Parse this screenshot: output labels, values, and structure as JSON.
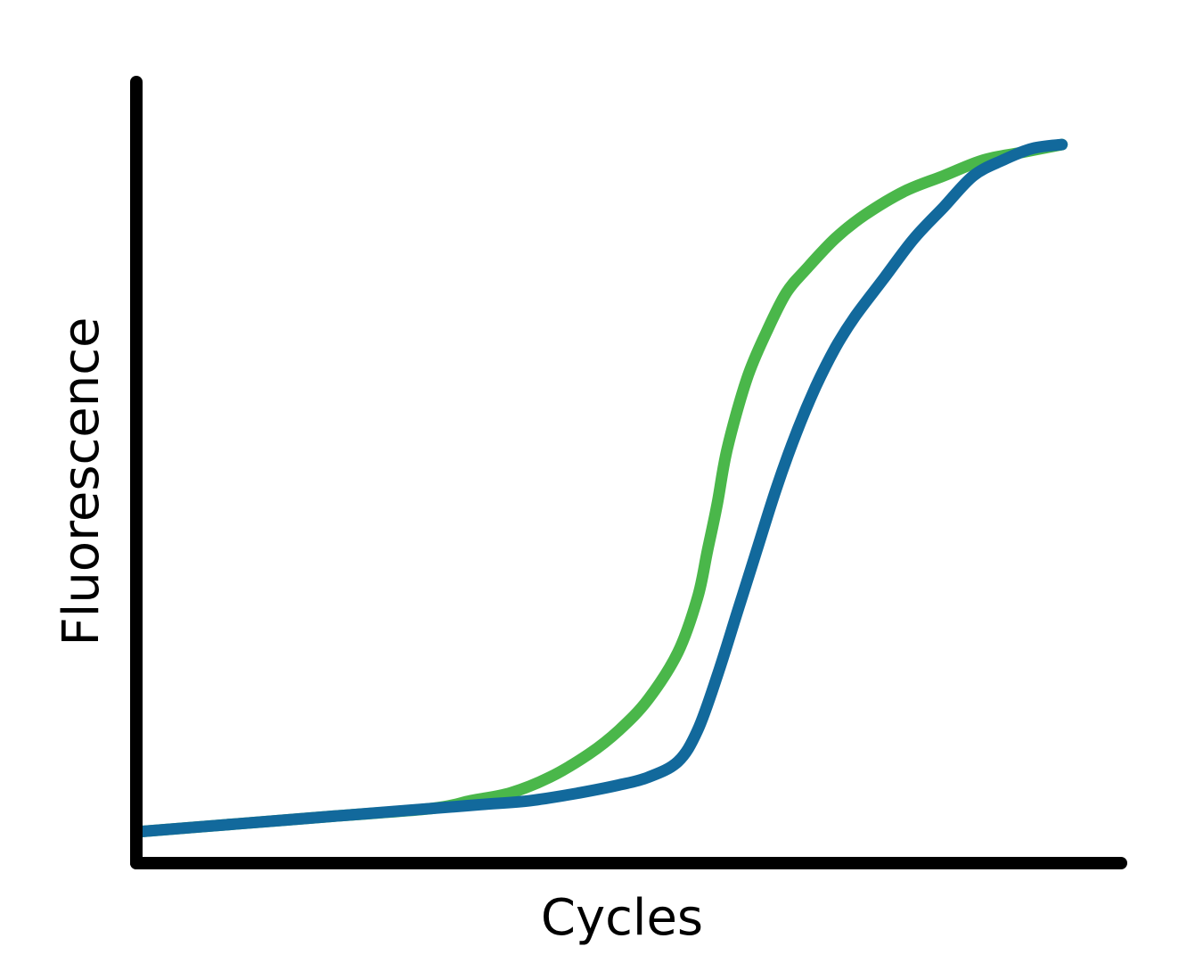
{
  "chart_data": {
    "type": "line",
    "title": "",
    "xlabel": "Cycles",
    "ylabel": "Fluorescence",
    "xlim": [
      0,
      100
    ],
    "ylim": [
      0,
      100
    ],
    "grid": false,
    "legend": "none",
    "series": [
      {
        "color": "#4ab74a",
        "x": [
          0,
          10,
          20,
          30,
          34,
          38,
          42,
          46,
          49,
          52,
          55,
          57,
          58,
          59,
          60,
          62,
          64,
          66,
          68,
          71,
          74,
          78,
          82,
          86,
          90,
          94
        ],
        "y": [
          4,
          5,
          6,
          7,
          8,
          9,
          11,
          14,
          17,
          21,
          27,
          34,
          40,
          46,
          53,
          62,
          68,
          73,
          76,
          80,
          83,
          86,
          88,
          90,
          91,
          92
        ]
      },
      {
        "color": "#12699c",
        "x": [
          0,
          10,
          20,
          30,
          35,
          40,
          45,
          49,
          52,
          55,
          57,
          59,
          61,
          63,
          65,
          67,
          69,
          71,
          73,
          76,
          79,
          82,
          85,
          88,
          91,
          94
        ],
        "y": [
          4,
          5,
          6,
          7,
          7.5,
          8,
          9,
          10,
          11,
          13,
          17,
          24,
          32,
          40,
          48,
          55,
          61,
          66,
          70,
          75,
          80,
          84,
          88,
          90,
          91.5,
          92
        ]
      }
    ]
  }
}
